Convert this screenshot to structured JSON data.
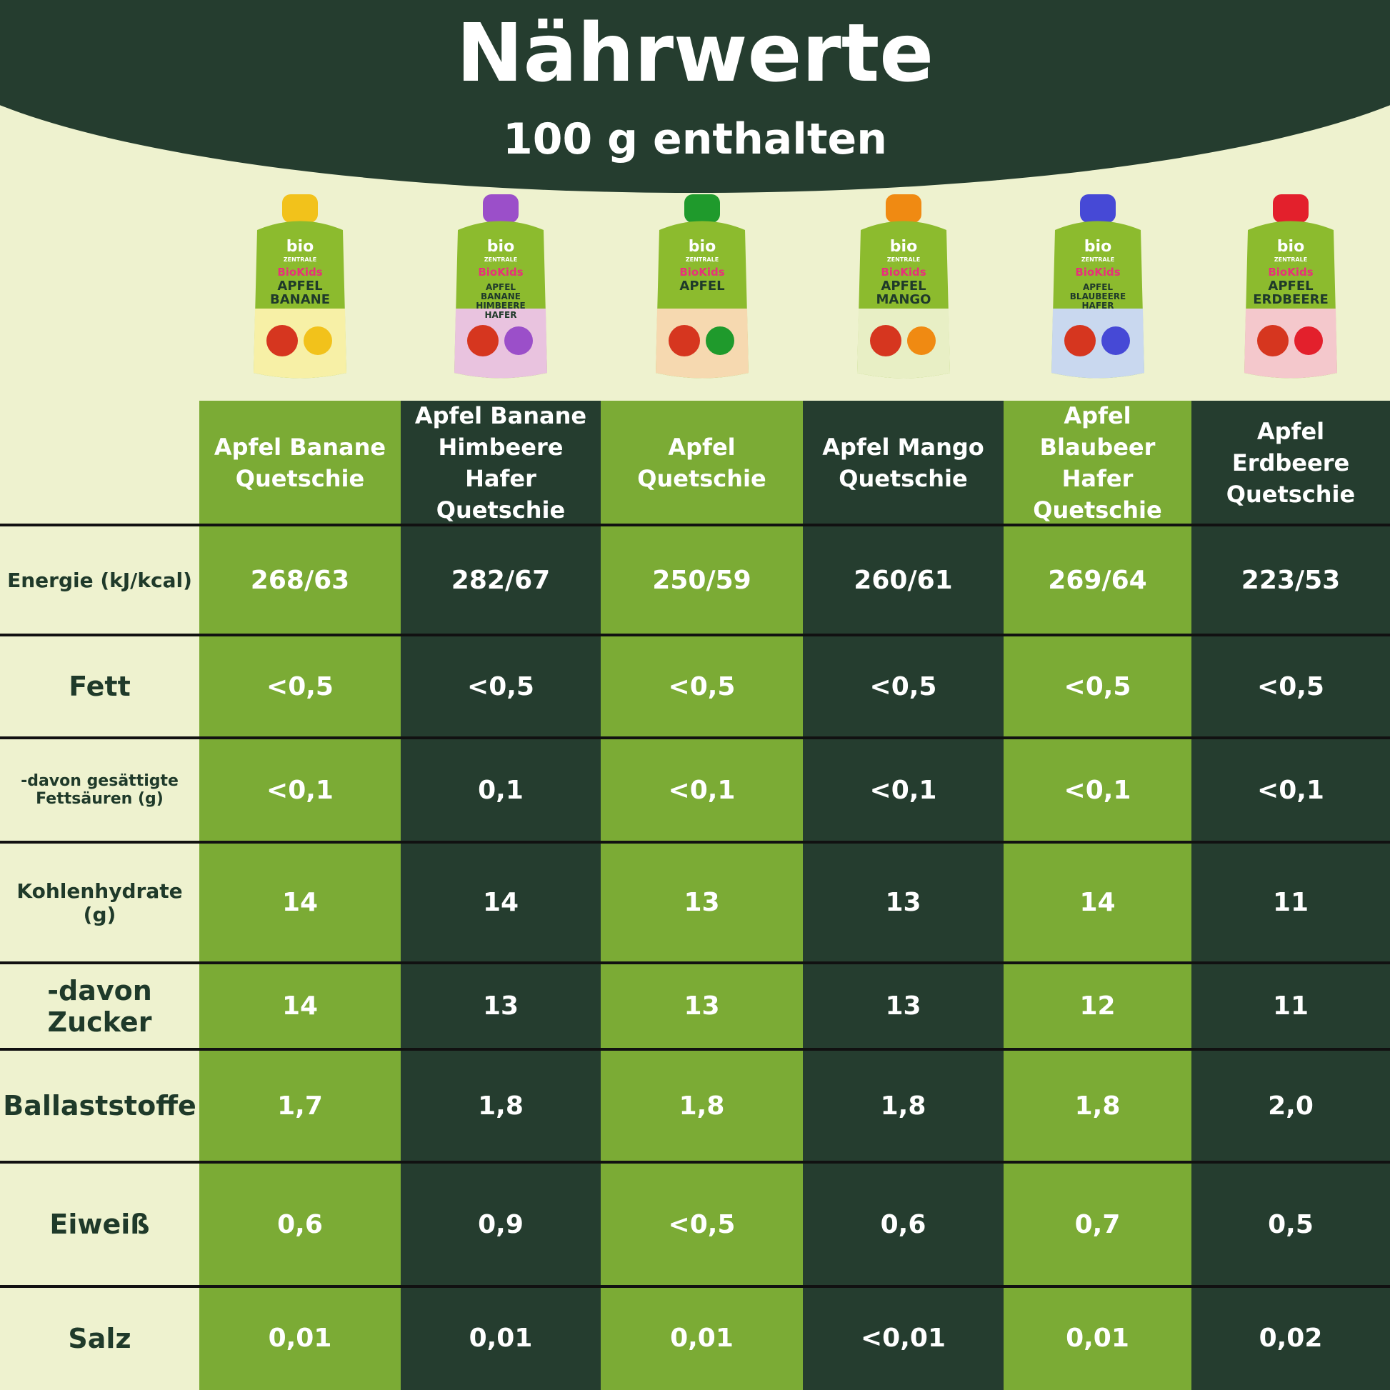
{
  "header": {
    "title": "Nährwerte",
    "subtitle": "100 g enthalten"
  },
  "pouch_brand": {
    "logo": "bio",
    "maker": "ZENTRALE",
    "line": "BioKids"
  },
  "products": [
    {
      "name": "Apfel Banane Quetschie",
      "pouch_label": "APFEL BANANE",
      "cap_color": "#f2c21b",
      "bottom_color": "#f7f0a6"
    },
    {
      "name": "Apfel Banane Himbeere Hafer Quetschie",
      "pouch_label": "APFEL BANANE HIMBEERE HAFER",
      "cap_color": "#9b4fc9",
      "bottom_color": "#e9c3df"
    },
    {
      "name": "Apfel Quetschie",
      "pouch_label": "APFEL",
      "cap_color": "#1f9a2c",
      "bottom_color": "#f6d9b0"
    },
    {
      "name": "Apfel Mango Quetschie",
      "pouch_label": "APFEL MANGO",
      "cap_color": "#f08a12",
      "bottom_color": "#e8efc5"
    },
    {
      "name": "Apfel Blaubeer Hafer Quetschie",
      "pouch_label": "APFEL BLAUBEERE HAFER",
      "cap_color": "#4649d6",
      "bottom_color": "#c9d8ef"
    },
    {
      "name": "Apfel Erdbeere Quetschie",
      "pouch_label": "APFEL ERDBEERE",
      "cap_color": "#e3202c",
      "bottom_color": "#f4c8cc"
    }
  ],
  "table": {
    "rows": [
      {
        "label": "Energie (kJ/kcal)",
        "values": [
          "268/63",
          "282/67",
          "250/59",
          "260/61",
          "269/64",
          "223/53"
        ]
      },
      {
        "label": "Fett",
        "values": [
          "<0,5",
          "<0,5",
          "<0,5",
          "<0,5",
          "<0,5",
          "<0,5"
        ]
      },
      {
        "label": "-davon gesättigte Fettsäuren (g)",
        "values": [
          "<0,1",
          "0,1",
          "<0,1",
          "<0,1",
          "<0,1",
          "<0,1"
        ]
      },
      {
        "label": "Kohlenhydrate (g)",
        "values": [
          "14",
          "14",
          "13",
          "13",
          "14",
          "11"
        ]
      },
      {
        "label": "-davon Zucker",
        "values": [
          "14",
          "13",
          "13",
          "13",
          "12",
          "11"
        ]
      },
      {
        "label": "Ballaststoffe",
        "values": [
          "1,7",
          "1,8",
          "1,8",
          "1,8",
          "1,8",
          "2,0"
        ]
      },
      {
        "label": "Eiweiß",
        "values": [
          "0,6",
          "0,9",
          "<0,5",
          "0,6",
          "0,7",
          "0,5"
        ]
      },
      {
        "label": "Salz",
        "values": [
          "0,01",
          "0,01",
          "0,01",
          "<0,01",
          "0,01",
          "0,02"
        ]
      }
    ]
  }
}
